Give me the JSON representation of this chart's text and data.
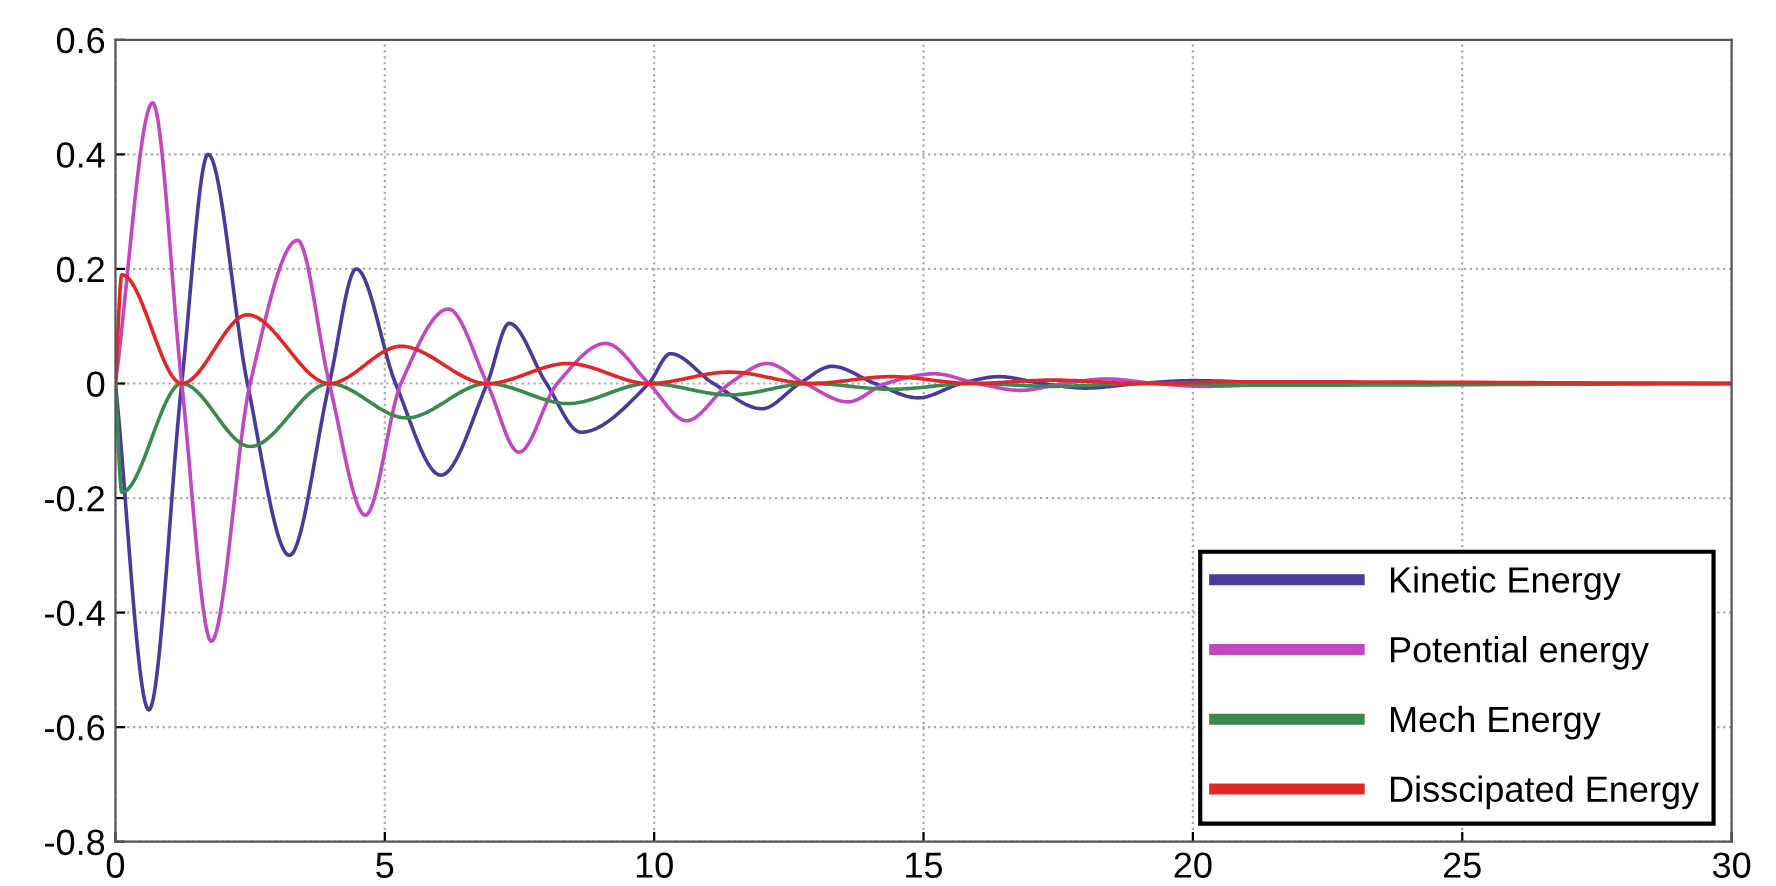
{
  "chart_data": {
    "type": "line",
    "xlim": [
      0,
      30
    ],
    "xticks": [
      0,
      5,
      10,
      15,
      20,
      25,
      30
    ],
    "ylim": [
      -0.8,
      0.6
    ],
    "yticks": [
      -0.8,
      -0.6,
      -0.4,
      -0.2,
      0,
      0.2,
      0.4,
      0.6
    ],
    "grid": true,
    "legend": "bottom right",
    "line_style": "solid",
    "series": [
      {
        "name": "Kinetic Energy",
        "color": "#4a3a9e",
        "x": [
          0,
          0.62,
          1.23,
          1.72,
          2.45,
          3.23,
          3.97,
          4.47,
          5.2,
          6.04,
          6.9,
          7.31,
          8.0,
          8.64,
          9.9,
          10.3,
          11.1,
          12.0,
          12.7,
          13.3,
          14.1,
          14.9,
          15.7,
          16.4,
          17.2,
          18.0,
          19.0,
          20,
          22,
          30
        ],
        "values": [
          0,
          -0.57,
          0,
          0.4,
          0,
          -0.3,
          0,
          0.2,
          0,
          -0.16,
          0,
          0.105,
          0,
          -0.085,
          0,
          0.052,
          0,
          -0.044,
          0,
          0.03,
          0,
          -0.025,
          0,
          0.012,
          0,
          -0.008,
          0,
          0.005,
          0,
          0
        ]
      },
      {
        "name": "Potential energy",
        "color": "#c048c0",
        "x": [
          0,
          0.69,
          1.23,
          1.78,
          2.5,
          3.38,
          3.97,
          4.64,
          5.3,
          6.18,
          6.9,
          7.49,
          8.2,
          9.1,
          9.9,
          10.6,
          11.4,
          12.1,
          12.8,
          13.6,
          14.3,
          15.2,
          16.0,
          16.8,
          17.6,
          18.4,
          19.3,
          20.2,
          22,
          30
        ],
        "values": [
          0,
          0.49,
          0,
          -0.45,
          0,
          0.25,
          0,
          -0.23,
          0,
          0.13,
          0,
          -0.12,
          0,
          0.07,
          0,
          -0.065,
          0,
          0.035,
          0,
          -0.032,
          0,
          0.017,
          0,
          -0.012,
          0,
          0.008,
          0,
          -0.005,
          0,
          0
        ]
      },
      {
        "name": "Mech Energy",
        "color": "#3a8a50",
        "x": [
          0,
          0.12,
          1.23,
          2.5,
          3.97,
          5.4,
          6.9,
          8.4,
          9.9,
          11.4,
          12.9,
          14.4,
          15.9,
          17.4,
          19,
          21,
          30
        ],
        "values": [
          0,
          -0.19,
          0,
          -0.11,
          0,
          -0.06,
          0,
          -0.035,
          0,
          -0.02,
          0,
          -0.01,
          0,
          -0.005,
          0,
          -0.003,
          0
        ]
      },
      {
        "name": "Disscipated Energy",
        "color": "#e02828",
        "x": [
          0,
          0.12,
          1.23,
          2.45,
          3.97,
          5.3,
          6.9,
          8.4,
          9.9,
          11.4,
          12.9,
          14.4,
          15.9,
          17.4,
          19,
          21,
          30
        ],
        "values": [
          0,
          0.19,
          0,
          0.12,
          0,
          0.065,
          0,
          0.035,
          0,
          0.02,
          0,
          0.012,
          0,
          0.006,
          0,
          0.003,
          0
        ]
      }
    ]
  }
}
